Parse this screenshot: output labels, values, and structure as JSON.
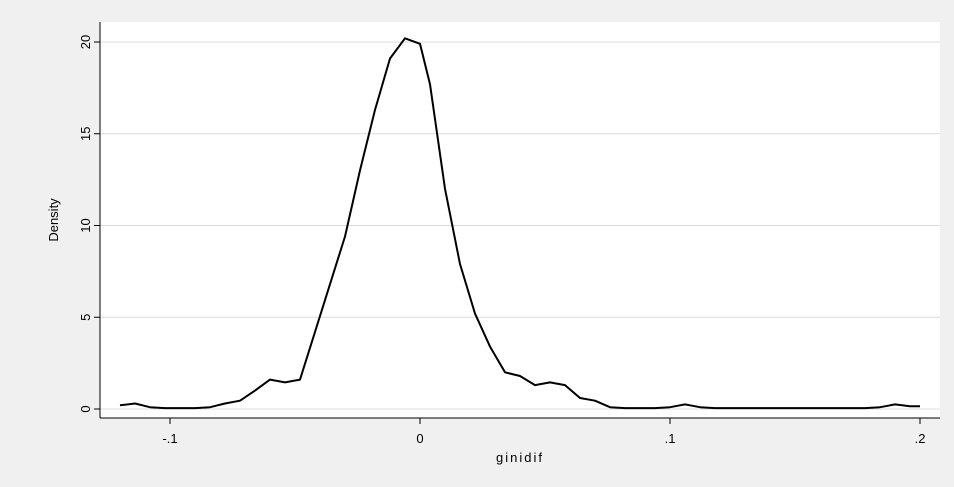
{
  "chart_data": {
    "type": "line",
    "title": "",
    "xlabel": "ginidif",
    "ylabel": "Density",
    "xlim": [
      -0.122,
      0.2
    ],
    "ylim": [
      0,
      20.3
    ],
    "x_ticks": [
      {
        "value": -0.1,
        "label": "-.1"
      },
      {
        "value": 0,
        "label": "0"
      },
      {
        "value": 0.1,
        "label": ".1"
      },
      {
        "value": 0.2,
        "label": ".2"
      }
    ],
    "y_ticks": [
      {
        "value": 0,
        "label": "0"
      },
      {
        "value": 5,
        "label": "5"
      },
      {
        "value": 10,
        "label": "10"
      },
      {
        "value": 15,
        "label": "15"
      },
      {
        "value": 20,
        "label": "20"
      }
    ],
    "grid": true,
    "legend": "none",
    "colors": {
      "background": "#f0f0f0",
      "plot_area": "#ffffff",
      "line": "#000000",
      "grid": "#dcdcdc"
    },
    "series": [
      {
        "x": [
          -0.12,
          -0.114,
          -0.108,
          -0.102,
          -0.096,
          -0.09,
          -0.084,
          -0.078,
          -0.072,
          -0.066,
          -0.06,
          -0.054,
          -0.048,
          -0.042,
          -0.036,
          -0.03,
          -0.024,
          -0.018,
          -0.012,
          -0.006,
          0.0,
          0.004,
          0.01,
          0.016,
          0.022,
          0.028,
          0.034,
          0.04,
          0.046,
          0.052,
          0.058,
          0.064,
          0.07,
          0.076,
          0.082,
          0.088,
          0.094,
          0.1,
          0.106,
          0.112,
          0.118,
          0.124,
          0.13,
          0.136,
          0.142,
          0.148,
          0.154,
          0.16,
          0.166,
          0.172,
          0.178,
          0.184,
          0.19,
          0.196,
          0.2
        ],
        "y": [
          0.2,
          0.3,
          0.1,
          0.05,
          0.05,
          0.05,
          0.1,
          0.3,
          0.45,
          1.0,
          1.6,
          1.45,
          1.6,
          4.2,
          6.8,
          9.4,
          13.0,
          16.3,
          19.1,
          20.2,
          19.9,
          17.7,
          12.0,
          7.9,
          5.2,
          3.4,
          2.0,
          1.8,
          1.3,
          1.45,
          1.3,
          0.6,
          0.45,
          0.1,
          0.05,
          0.05,
          0.05,
          0.1,
          0.25,
          0.1,
          0.05,
          0.05,
          0.05,
          0.05,
          0.05,
          0.05,
          0.05,
          0.05,
          0.05,
          0.05,
          0.05,
          0.1,
          0.25,
          0.15,
          0.15
        ]
      }
    ]
  }
}
